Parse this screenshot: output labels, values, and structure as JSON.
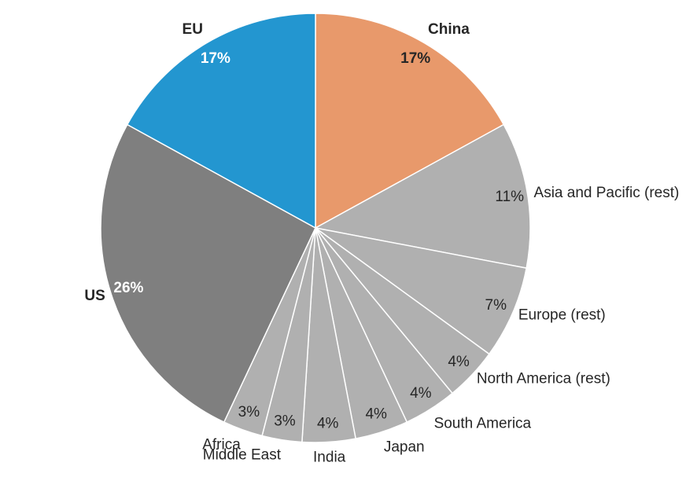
{
  "chart_data": {
    "type": "pie",
    "categories": [
      "China",
      "Asia and Pacific (rest)",
      "Europe (rest)",
      "North America (rest)",
      "South America",
      "Japan",
      "India",
      "Middle East",
      "Africa",
      "US",
      "EU"
    ],
    "values": [
      17,
      11,
      7,
      4,
      4,
      4,
      4,
      3,
      3,
      26,
      17
    ],
    "value_labels": [
      "17%",
      "11%",
      "7%",
      "4%",
      "4%",
      "4%",
      "4%",
      "3%",
      "3%",
      "26%",
      "17%"
    ],
    "colors": [
      "#e8996b",
      "#b0b0b0",
      "#b0b0b0",
      "#b0b0b0",
      "#b0b0b0",
      "#b0b0b0",
      "#b0b0b0",
      "#b0b0b0",
      "#b0b0b0",
      "#7f7f7f",
      "#2396d0"
    ]
  }
}
